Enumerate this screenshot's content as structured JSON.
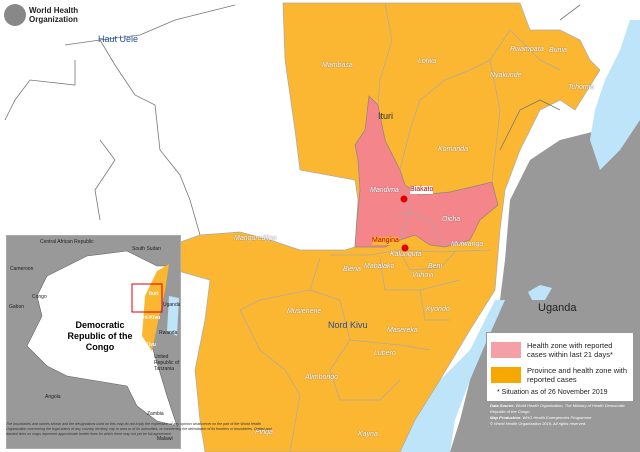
{
  "organization": "World Health Organization",
  "provinces": [
    "Haut Uele",
    "Ituri",
    "Nord Kivu"
  ],
  "country_labels": [
    "Uganda"
  ],
  "health_zones": [
    "Mambasa",
    "Lolwa",
    "Rwampara",
    "Bunia",
    "Nyakunde",
    "Tchomia",
    "Komanda",
    "Mandima",
    "Oicha",
    "Mabalako",
    "Beni",
    "Manguredjipa",
    "Mutwanga",
    "Kalunguta",
    "Biena",
    "Vuhovi",
    "Kyondo",
    "Musienene",
    "Masereka",
    "Lubero",
    "Alimbongo",
    "Pinga",
    "Kayna"
  ],
  "localities": [
    "Biakato",
    "Mangina"
  ],
  "inset": {
    "title": "Democratic Republic of the Congo",
    "neighbours": [
      "Central African Republic",
      "South Sudan",
      "Cameroon",
      "Congo",
      "Gabon",
      "Uganda",
      "Rwanda",
      "United Republic of Tanzania",
      "Angola",
      "Zambia",
      "Malawi"
    ],
    "provinces": [
      "Ituri",
      "Nord-Kivu",
      "Sud-Kivu"
    ]
  },
  "legend": {
    "items": [
      {
        "label": "Health zone with reported cases within last 21 days*",
        "color": "#f4a0a6"
      },
      {
        "label": "Province and health zone with reported cases",
        "color": "#f7a800"
      }
    ],
    "note": "* Situation as of 26 November 2019"
  },
  "colors": {
    "affected_21d": "#f4858a",
    "affected": "#fbb632",
    "neighbour": "#999999",
    "water": "#bde4f8",
    "locality": "#e00000"
  },
  "disclaimer": "The boundaries and names shown and the designations used on this map do not imply the expression of any opinion whatsoever on the part of the World Health Organization concerning the legal status of any country, territory, city or area or of its authorities, or concerning the delimitation of its frontiers or boundaries. Dotted and dashed lines on maps represent approximate border lines for which there may not yet be full agreement.",
  "credits": {
    "source_label": "Data Source",
    "source": "World Health Organization, The Ministry of Health Democratic Republic of the Congo",
    "production_label": "Map Production",
    "production": "WHO Health Emergencies Programme",
    "copyright": "© World Health Organization 2019, All rights reserved."
  }
}
